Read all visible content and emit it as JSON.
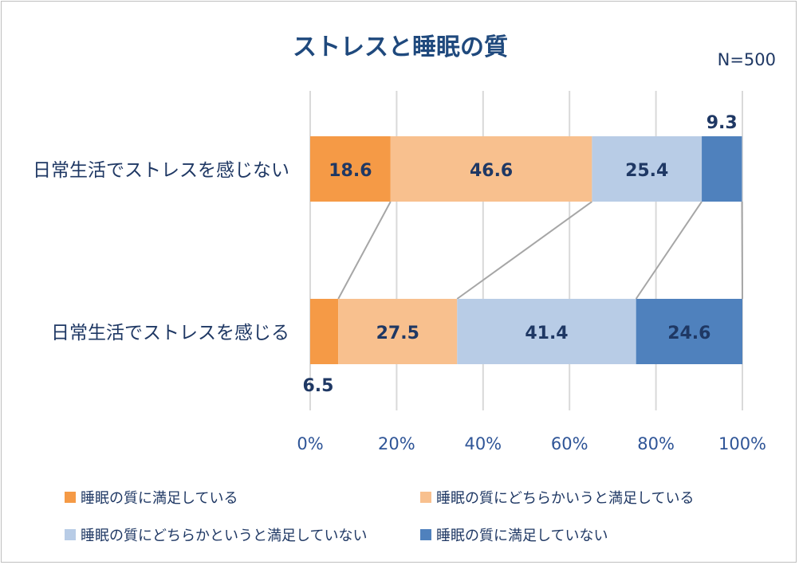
{
  "chart_data": {
    "type": "bar",
    "orientation": "horizontal",
    "stacked": true,
    "title": "ストレスと睡眠の質",
    "note": "N=500",
    "categories": [
      "日常生活でストレスを感じない",
      "日常生活でストレスを感じる"
    ],
    "series": [
      {
        "name": "睡眠の質に満足している",
        "values": [
          18.6,
          6.5
        ],
        "labels": [
          "18.6",
          "6.5"
        ],
        "color": "#F59A46"
      },
      {
        "name": "睡眠の質にどちらかいうと満足している",
        "values": [
          46.6,
          27.5
        ],
        "labels": [
          "46.6",
          "27.5"
        ],
        "color": "#F8C08E"
      },
      {
        "name": "睡眠の質にどちらかというと満足していない",
        "values": [
          25.4,
          41.4
        ],
        "labels": [
          "25.4",
          "41.4"
        ],
        "color": "#B8CCE6"
      },
      {
        "name": "睡眠の質に満足していない",
        "values": [
          9.3,
          24.6
        ],
        "labels": [
          "9.3",
          "24.6"
        ],
        "color": "#4F81BD"
      }
    ],
    "xlim": [
      0,
      100
    ],
    "xticks": [
      "0%",
      "20%",
      "40%",
      "60%",
      "80%",
      "100%"
    ],
    "grid": true,
    "series_lines": true,
    "legend_position": "bottom",
    "label_color": "#1F3864",
    "title_color": "#1F497D",
    "axis_text_color": "#2F5597"
  }
}
